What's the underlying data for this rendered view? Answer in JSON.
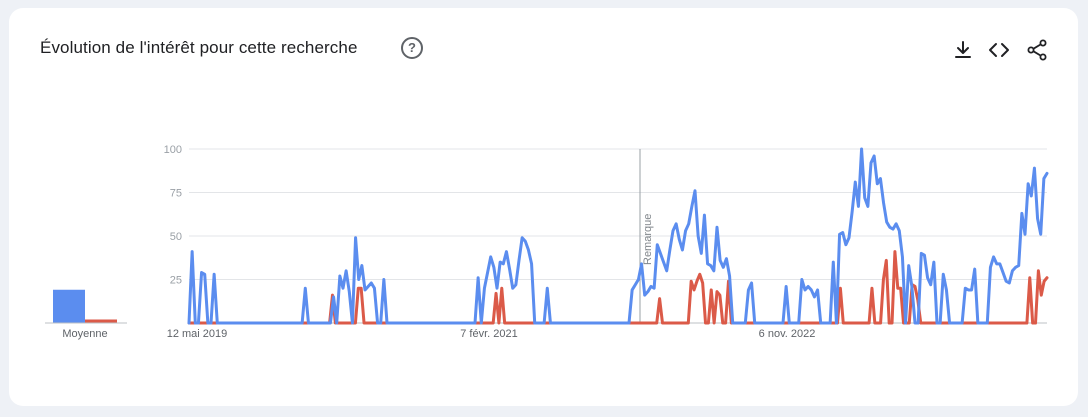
{
  "header": {
    "title": "Évolution de l'intérêt pour cette recherche",
    "help_icon": "help-circle-icon",
    "download_icon": "download-icon",
    "embed_icon": "code-embed-icon",
    "share_icon": "share-icon"
  },
  "colors": {
    "series1": "#5b8def",
    "series2": "#db5a48",
    "grid": "#e3e5e8"
  },
  "chart_data": {
    "type": "line",
    "title": "Évolution de l'intérêt pour cette recherche",
    "ylim": [
      0,
      100
    ],
    "y_ticks": [
      25,
      50,
      75,
      100
    ],
    "x_tick_labels": [
      "12 mai 2019",
      "7 févr. 2021",
      "6 nov. 2022"
    ],
    "annotation": "Remarque",
    "grid": true,
    "average_label": "Moyenne",
    "averages": [
      19,
      2
    ],
    "series": [
      {
        "values": [
          0,
          41,
          0,
          0,
          29,
          28,
          0,
          0,
          28,
          0,
          0,
          0,
          0,
          0,
          0,
          0,
          0,
          0,
          0,
          0,
          0,
          0,
          0,
          0,
          0,
          0,
          0,
          0,
          0,
          0,
          0,
          0,
          0,
          0,
          0,
          0,
          0,
          20,
          0,
          0,
          0,
          0,
          0,
          0,
          0,
          0,
          15,
          0,
          27,
          20,
          30,
          18,
          0,
          49,
          25,
          33,
          19,
          21,
          23,
          20,
          0,
          0,
          25,
          0,
          0,
          0,
          0,
          0,
          0,
          0,
          0,
          0,
          0,
          0,
          0,
          0,
          0,
          0,
          0,
          0,
          0,
          0,
          0,
          0,
          0,
          0,
          0,
          0,
          0,
          0,
          0,
          0,
          26,
          0,
          20,
          29,
          38,
          32,
          20,
          35,
          34,
          41,
          31,
          20,
          22,
          36,
          49,
          47,
          42,
          34,
          0,
          0,
          0,
          0,
          20,
          0,
          0,
          0,
          0,
          0,
          0,
          0,
          0,
          0,
          0,
          0,
          0,
          0,
          0,
          0,
          0,
          0,
          0,
          0,
          0,
          0,
          0,
          0,
          0,
          0,
          0,
          19,
          22,
          25,
          34,
          16,
          18,
          21,
          20,
          45,
          40,
          35,
          30,
          42,
          53,
          57,
          48,
          42,
          53,
          57,
          67,
          76,
          50,
          40,
          62,
          34,
          33,
          30,
          55,
          36,
          32,
          37,
          27,
          0,
          0,
          0,
          0,
          0,
          19,
          23,
          0,
          0,
          0,
          0,
          0,
          0,
          0,
          0,
          0,
          0,
          21,
          0,
          0,
          0,
          0,
          25,
          19,
          21,
          19,
          15,
          19,
          0,
          0,
          0,
          0,
          35,
          0,
          51,
          52,
          45,
          49,
          64,
          81,
          67,
          100,
          72,
          67,
          92,
          96,
          80,
          83,
          69,
          58,
          55,
          54,
          57,
          53,
          38,
          0,
          33,
          21,
          0,
          0,
          40,
          39,
          26,
          22,
          35,
          0,
          0,
          28,
          19,
          0,
          0,
          0,
          0,
          0,
          20,
          19,
          19,
          31,
          0,
          0,
          0,
          0,
          32,
          38,
          34,
          34,
          29,
          24,
          23,
          30,
          32,
          33,
          63,
          51,
          80,
          73,
          89,
          60,
          51,
          83,
          86
        ]
      },
      {
        "values": [
          0,
          0,
          0,
          0,
          0,
          0,
          0,
          0,
          0,
          0,
          0,
          0,
          0,
          0,
          0,
          0,
          0,
          0,
          0,
          0,
          0,
          0,
          0,
          0,
          0,
          0,
          0,
          0,
          0,
          0,
          0,
          0,
          0,
          0,
          0,
          0,
          0,
          0,
          0,
          0,
          0,
          0,
          0,
          0,
          0,
          0,
          0,
          0,
          0,
          0,
          16,
          0,
          0,
          0,
          0,
          0,
          0,
          0,
          0,
          20,
          20,
          0,
          0,
          0,
          0,
          0,
          0,
          0,
          0,
          0,
          0,
          0,
          0,
          0,
          0,
          0,
          0,
          0,
          0,
          0,
          0,
          0,
          0,
          0,
          0,
          0,
          0,
          0,
          0,
          0,
          0,
          0,
          0,
          0,
          0,
          0,
          0,
          0,
          0,
          0,
          0,
          0,
          0,
          0,
          0,
          0,
          0,
          17,
          0,
          20,
          0,
          0,
          0,
          0,
          0,
          0,
          0,
          0,
          0,
          0,
          0,
          0,
          0,
          0,
          0,
          0,
          0,
          0,
          0,
          0,
          0,
          0,
          0,
          0,
          0,
          0,
          0,
          0,
          0,
          0,
          0,
          0,
          0,
          0,
          0,
          0,
          0,
          0,
          0,
          0,
          0,
          0,
          0,
          0,
          0,
          0,
          0,
          0,
          0,
          0,
          0,
          0,
          0,
          0,
          14,
          0,
          0,
          0,
          0,
          0,
          0,
          0,
          0,
          0,
          0,
          24,
          19,
          24,
          28,
          23,
          0,
          0,
          19,
          0,
          18,
          16,
          0,
          0,
          24,
          0,
          0,
          0,
          0,
          0,
          0,
          0,
          0,
          0,
          0,
          0,
          0,
          0,
          0,
          0,
          0,
          0,
          0,
          0,
          0,
          0,
          0,
          0,
          0,
          0,
          0,
          0,
          0,
          0,
          0,
          0,
          0,
          0,
          0,
          0,
          0,
          0,
          0,
          20,
          0,
          0,
          0,
          0,
          0,
          0,
          0,
          0,
          0,
          0,
          20,
          0,
          0,
          0,
          25,
          36,
          0,
          0,
          41,
          20,
          20,
          0,
          0,
          0,
          22,
          21,
          13,
          0,
          0,
          0,
          0,
          0,
          0,
          0,
          0,
          0,
          0,
          0,
          0,
          0,
          0,
          0,
          0,
          0,
          0,
          0,
          0,
          0,
          0,
          0,
          0,
          0,
          0,
          0,
          0,
          0,
          0,
          0,
          0,
          0,
          0,
          0,
          0,
          0,
          0,
          26,
          0,
          0,
          30,
          16,
          24,
          26
        ]
      }
    ]
  }
}
